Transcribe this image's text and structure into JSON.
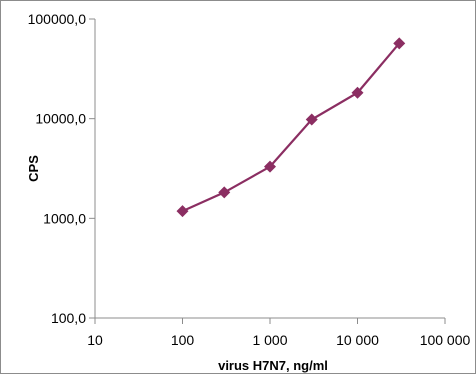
{
  "chart_data": {
    "type": "line",
    "title": "",
    "xlabel": "virus H7N7, ng/ml",
    "ylabel": "CPS",
    "x_scale": "log",
    "y_scale": "log",
    "xlim": [
      10,
      100000
    ],
    "ylim": [
      100,
      100000
    ],
    "x_ticks": [
      10,
      100,
      1000,
      10000,
      100000
    ],
    "x_tick_labels": [
      "10",
      "100",
      "1 000",
      "10 000",
      "100 000"
    ],
    "y_ticks": [
      100,
      1000,
      10000,
      100000
    ],
    "y_tick_labels": [
      "100,0",
      "1000,0",
      "10000,0",
      "100000,0"
    ],
    "grid": false,
    "legend": "none",
    "series": [
      {
        "color": "#8b2e62",
        "marker": "diamond",
        "x": [
          100,
          300,
          1000,
          3000,
          10000,
          30000
        ],
        "y": [
          1180,
          1820,
          3300,
          9800,
          18200,
          57000
        ]
      }
    ]
  }
}
